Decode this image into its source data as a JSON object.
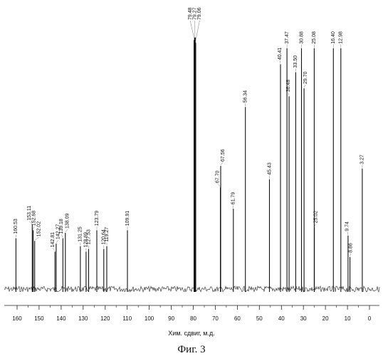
{
  "chart_data": {
    "type": "line",
    "title": "",
    "xlabel": "Хим. сдвиг, м.д.",
    "ylabel": "",
    "xlim": [
      162,
      -1
    ],
    "x_direction": "reversed",
    "grid": false,
    "caption": "Фиг. 3",
    "x_ticks": [
      {
        "value": 160,
        "label": "160"
      },
      {
        "value": 150,
        "label": "150"
      },
      {
        "value": 140,
        "label": "140"
      },
      {
        "value": 130,
        "label": "130"
      },
      {
        "value": 120,
        "label": "120"
      },
      {
        "value": 110,
        "label": "110"
      },
      {
        "value": 100,
        "label": "100"
      },
      {
        "value": 90,
        "label": "90"
      },
      {
        "value": 80,
        "label": "80"
      },
      {
        "value": 70,
        "label": "70"
      },
      {
        "value": 60,
        "label": "60"
      },
      {
        "value": 50,
        "label": "50"
      },
      {
        "value": 40,
        "label": "40"
      },
      {
        "value": 30,
        "label": "30"
      },
      {
        "value": 20,
        "label": "20"
      },
      {
        "value": 10,
        "label": "10"
      },
      {
        "value": 0,
        "label": "0"
      }
    ],
    "peaks": [
      {
        "shift": 160.53,
        "label": "160.53",
        "intensity": 0.19
      },
      {
        "shift": 153.11,
        "label": "153.11",
        "intensity": 0.24
      },
      {
        "shift": 152.68,
        "label": "152.68",
        "intensity": 0.22
      },
      {
        "shift": 152.02,
        "label": "152.02",
        "intensity": 0.18
      },
      {
        "shift": 142.81,
        "label": "142.81",
        "intensity": 0.14
      },
      {
        "shift": 142.27,
        "label": "142.27",
        "intensity": 0.17
      },
      {
        "shift": 139.18,
        "label": "139.18",
        "intensity": 0.19
      },
      {
        "shift": 138.09,
        "label": "138.09",
        "intensity": 0.21
      },
      {
        "shift": 131.25,
        "label": "131.25",
        "intensity": 0.16
      },
      {
        "shift": 128.69,
        "label": "128.69",
        "intensity": 0.14
      },
      {
        "shift": 127.53,
        "label": "127.53",
        "intensity": 0.15
      },
      {
        "shift": 123.79,
        "label": "123.79",
        "intensity": 0.22
      },
      {
        "shift": 120.64,
        "label": "120.64",
        "intensity": 0.15
      },
      {
        "shift": 119.27,
        "label": "119.27",
        "intensity": 0.16
      },
      {
        "shift": 109.91,
        "label": "109.91",
        "intensity": 0.22
      },
      {
        "shift": 79.48,
        "label": "79.48",
        "intensity": 0.93
      },
      {
        "shift": 79.27,
        "label": "79.27",
        "intensity": 0.94
      },
      {
        "shift": 79.06,
        "label": "79.06",
        "intensity": 0.92
      },
      {
        "shift": 67.7,
        "label": "67.70",
        "intensity": 0.38
      },
      {
        "shift": 67.56,
        "label": "67.56",
        "intensity": 0.46
      },
      {
        "shift": 61.79,
        "label": "61.79",
        "intensity": 0.3
      },
      {
        "shift": 56.34,
        "label": "56.34",
        "intensity": 0.68
      },
      {
        "shift": 45.43,
        "label": "45.43",
        "intensity": 0.41
      },
      {
        "shift": 40.41,
        "label": "40.41",
        "intensity": 0.84
      },
      {
        "shift": 37.47,
        "label": "37.47",
        "intensity": 0.9
      },
      {
        "shift": 36.48,
        "label": "36.48",
        "intensity": 0.72
      },
      {
        "shift": 33.5,
        "label": "33.50",
        "intensity": 0.81
      },
      {
        "shift": 30.88,
        "label": "30.88",
        "intensity": 0.9
      },
      {
        "shift": 29.7,
        "label": "29.70",
        "intensity": 0.75
      },
      {
        "shift": 25.08,
        "label": "25.08",
        "intensity": 0.9
      },
      {
        "shift": 25.02,
        "label": "25.02",
        "intensity": 0.23
      },
      {
        "shift": 16.4,
        "label": "16.40",
        "intensity": 0.9
      },
      {
        "shift": 12.98,
        "label": "12.98",
        "intensity": 0.9
      },
      {
        "shift": 9.74,
        "label": "9.74",
        "intensity": 0.2
      },
      {
        "shift": 8.86,
        "label": "8.86",
        "intensity": 0.12
      },
      {
        "shift": 3.27,
        "label": "3.27",
        "intensity": 0.45
      }
    ]
  }
}
